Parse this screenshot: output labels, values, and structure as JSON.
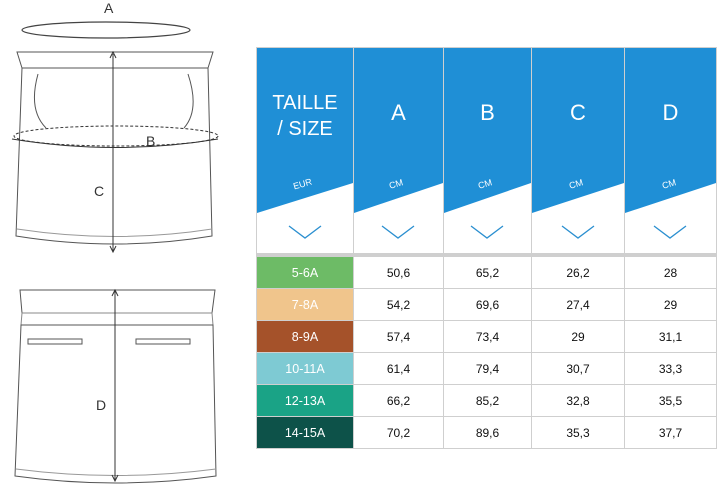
{
  "diagram": {
    "labels": {
      "a": "A",
      "b": "B",
      "c": "C",
      "d": "D"
    }
  },
  "table": {
    "header": {
      "size": {
        "title_line1": "TAILLE",
        "title_line2": "/ SIZE",
        "unit": "EUR"
      },
      "columns": [
        {
          "title": "A",
          "unit": "CM"
        },
        {
          "title": "B",
          "unit": "CM"
        },
        {
          "title": "C",
          "unit": "CM"
        },
        {
          "title": "D",
          "unit": "CM"
        }
      ]
    },
    "rows": [
      {
        "size": "5-6A",
        "color": "#6dbb66",
        "values": [
          "50,6",
          "65,2",
          "26,2",
          "28"
        ]
      },
      {
        "size": "7-8A",
        "color": "#f0c58c",
        "values": [
          "54,2",
          "69,6",
          "27,4",
          "29"
        ]
      },
      {
        "size": "8-9A",
        "color": "#a5522a",
        "values": [
          "57,4",
          "73,4",
          "29",
          "31,1"
        ]
      },
      {
        "size": "10-11A",
        "color": "#7ecad3",
        "values": [
          "61,4",
          "79,4",
          "30,7",
          "33,3"
        ]
      },
      {
        "size": "12-13A",
        "color": "#1aa386",
        "values": [
          "66,2",
          "85,2",
          "32,8",
          "35,5"
        ]
      },
      {
        "size": "14-15A",
        "color": "#0d5249",
        "values": [
          "70,2",
          "89,6",
          "35,3",
          "37,7"
        ]
      }
    ],
    "colors": {
      "header_blue": "#1f8fd6",
      "chevron": "#2a8fd0",
      "grid": "#cfcfcf"
    }
  }
}
